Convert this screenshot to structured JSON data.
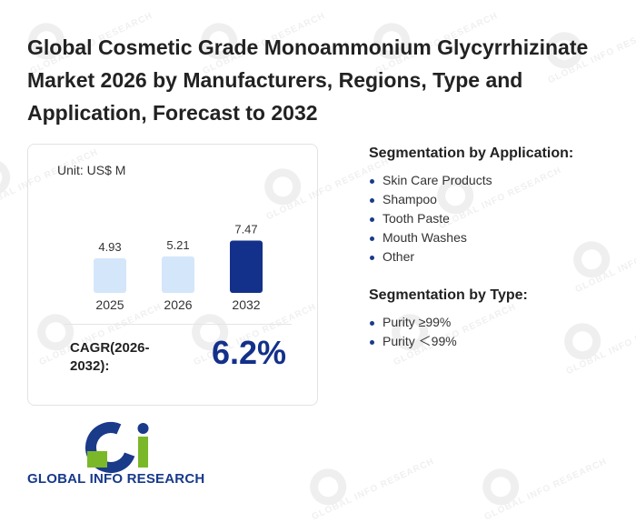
{
  "title": "Global Cosmetic Grade Monoammonium Glycyrrhizinate Market 2026 by Manufacturers, Regions, Type and Application, Forecast to 2032",
  "unit_label": "Unit: US$ M",
  "cagr": {
    "label": "CAGR(2026-2032):",
    "value": "6.2%"
  },
  "colors": {
    "bar_light": "#d4e6fa",
    "bar_dark": "#13318a",
    "accent": "#13318a",
    "logo_green": "#7ab829"
  },
  "chart_data": {
    "type": "bar",
    "categories": [
      "2025",
      "2026",
      "2032"
    ],
    "values": [
      4.93,
      5.21,
      7.47
    ],
    "value_labels": [
      "4.93",
      "5.21",
      "7.47"
    ],
    "ylabel": "",
    "xlabel": ""
  },
  "segment_application": {
    "heading": "Segmentation by Application:",
    "items": [
      "Skin Care Products",
      "Shampoo",
      "Tooth Paste",
      "Mouth Washes",
      "Other"
    ]
  },
  "segment_type": {
    "heading": "Segmentation by Type:",
    "items": [
      "Purity ≥99%",
      "Purity ＜99%"
    ]
  },
  "logo": {
    "text": "GLOBAL INFO RESEARCH"
  },
  "watermark": {
    "text": "GLOBAL INFO RESEARCH"
  }
}
